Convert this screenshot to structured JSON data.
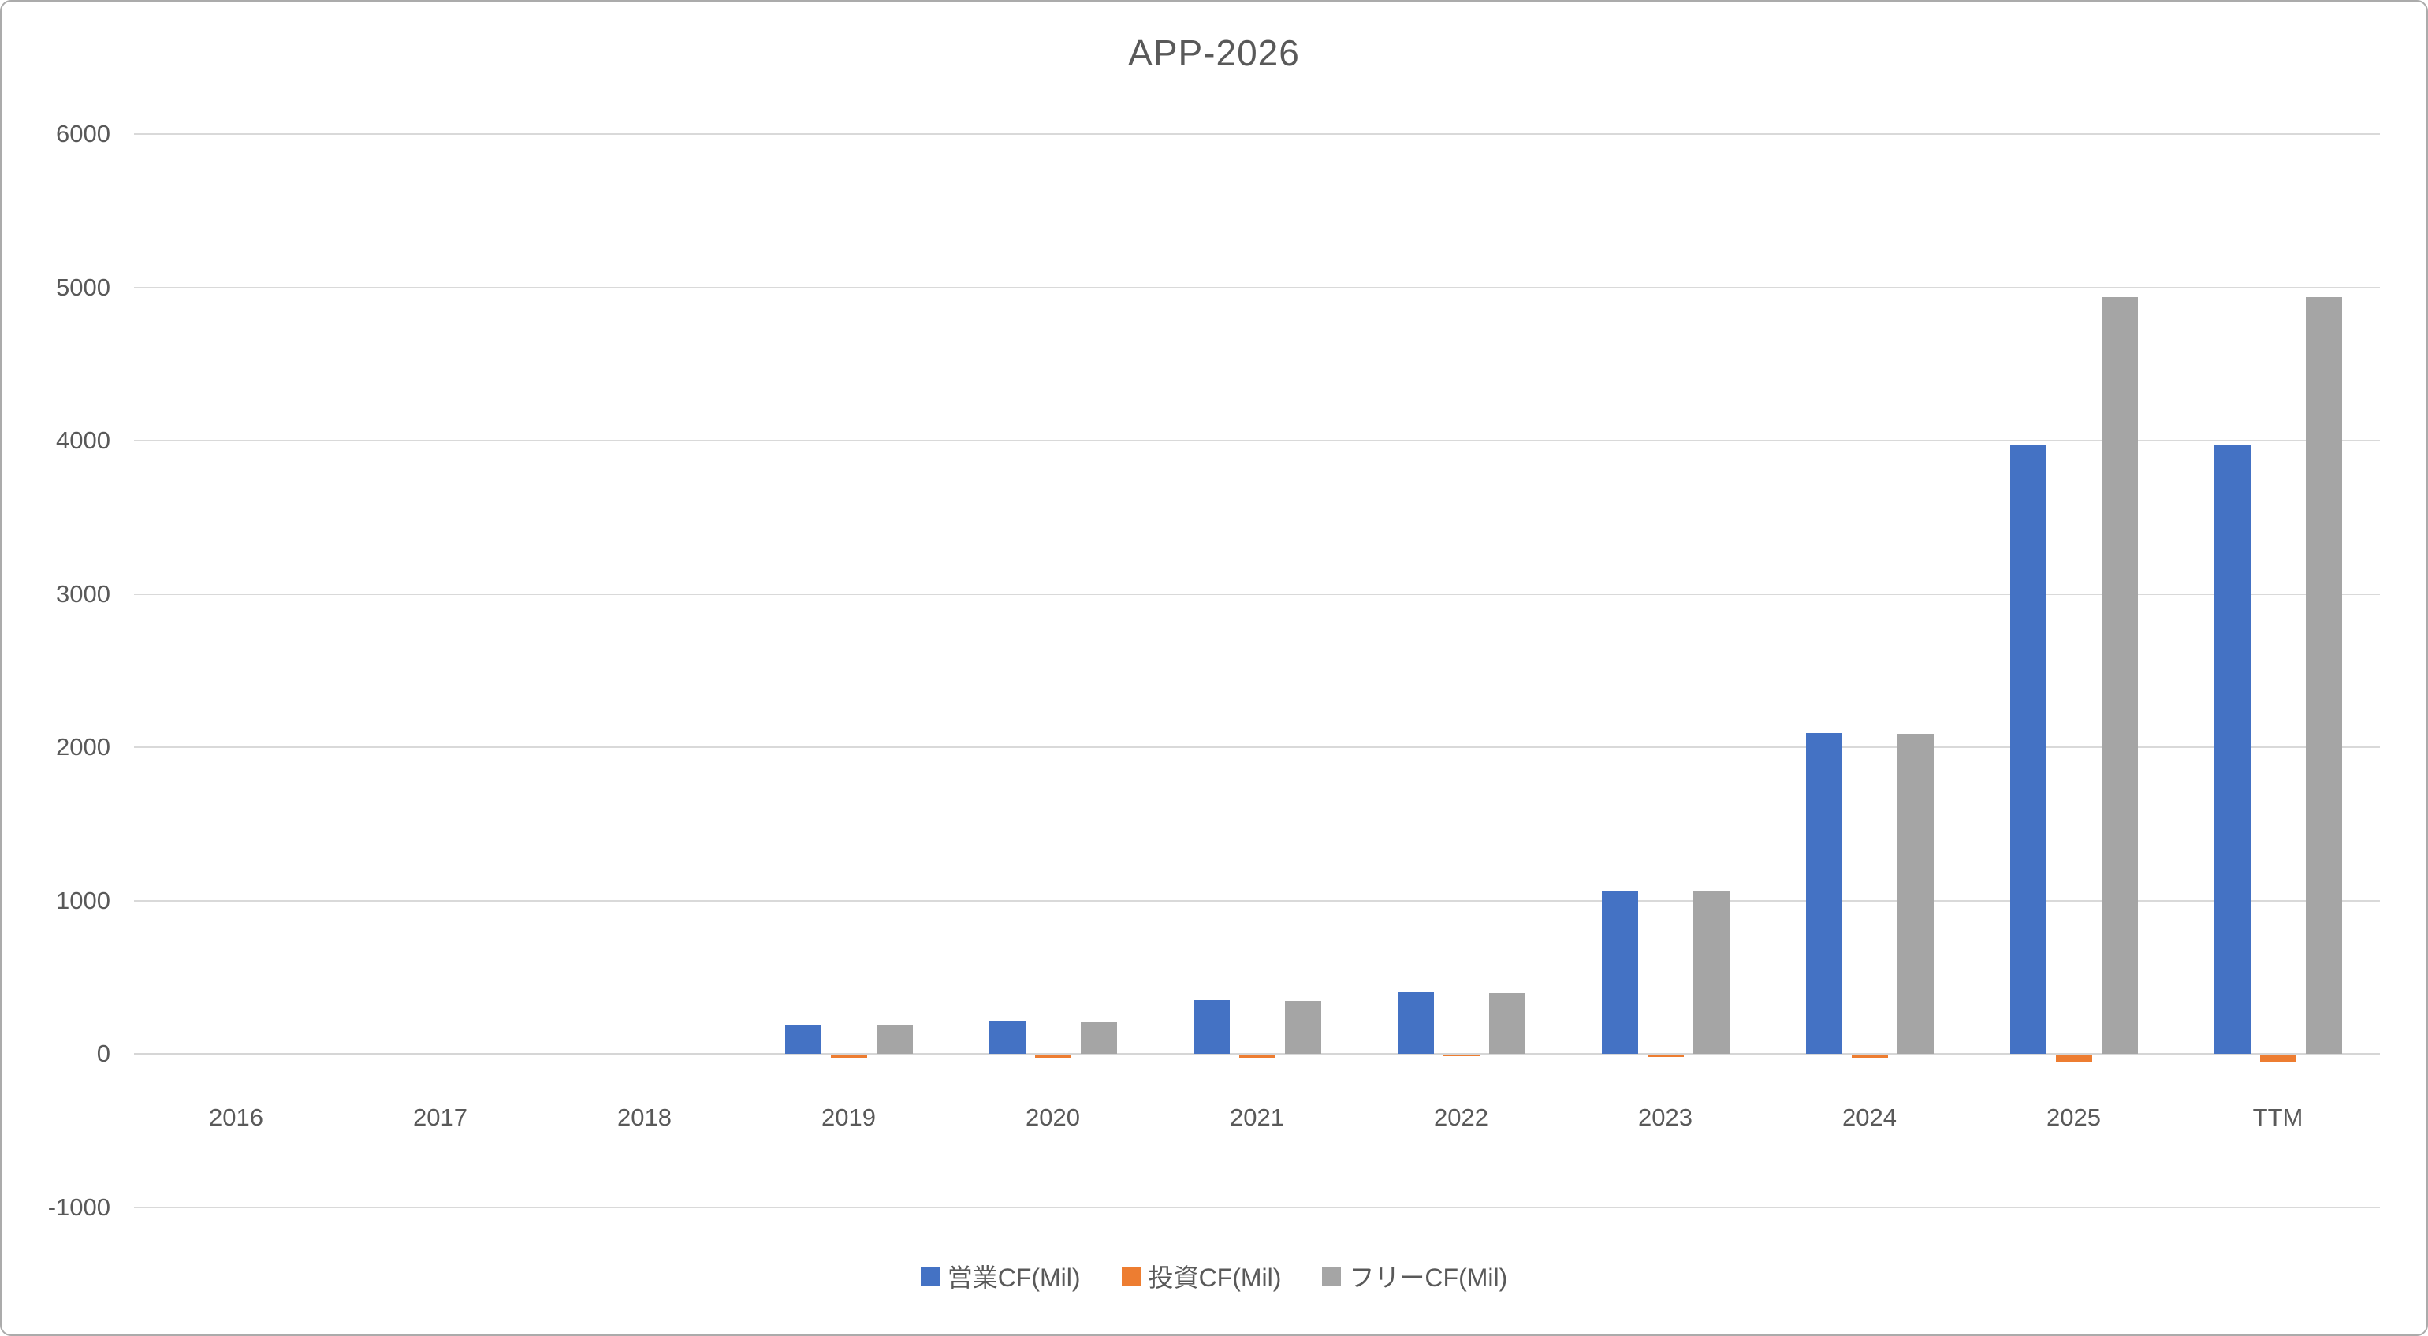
{
  "chart_data": {
    "type": "bar",
    "title": "APP-2026",
    "categories": [
      "2016",
      "2017",
      "2018",
      "2019",
      "2020",
      "2021",
      "2022",
      "2023",
      "2024",
      "2025",
      "TTM"
    ],
    "series": [
      {
        "id": "operating-cf",
        "name": "営業CF(Mil)",
        "color": "#4472C4",
        "values": [
          0,
          0,
          0,
          190,
          215,
          350,
          400,
          1065,
          2090,
          3970,
          3970
        ]
      },
      {
        "id": "investing-cf",
        "name": "投資CF(Mil)",
        "color": "#ED7D31",
        "values": [
          0,
          0,
          0,
          -13,
          -13,
          -13,
          -5,
          -10,
          -15,
          -40,
          -40
        ]
      },
      {
        "id": "free-cf",
        "name": "フリーCF(Mil)",
        "color": "#A5A5A5",
        "values": [
          0,
          0,
          0,
          185,
          210,
          345,
          397,
          1060,
          2085,
          4935,
          4935
        ]
      }
    ],
    "xlabel": "",
    "ylabel": "",
    "ylim": [
      -1000,
      6000
    ],
    "yticks": [
      6000,
      5000,
      4000,
      3000,
      2000,
      1000,
      0,
      -1000
    ],
    "grid": true,
    "legend_position": "bottom",
    "colors": {
      "gridline": "#d9d9d9",
      "zero_line": "#d6d6d6",
      "text": "#595959",
      "background": "#ffffff",
      "border": "#ababab"
    }
  }
}
